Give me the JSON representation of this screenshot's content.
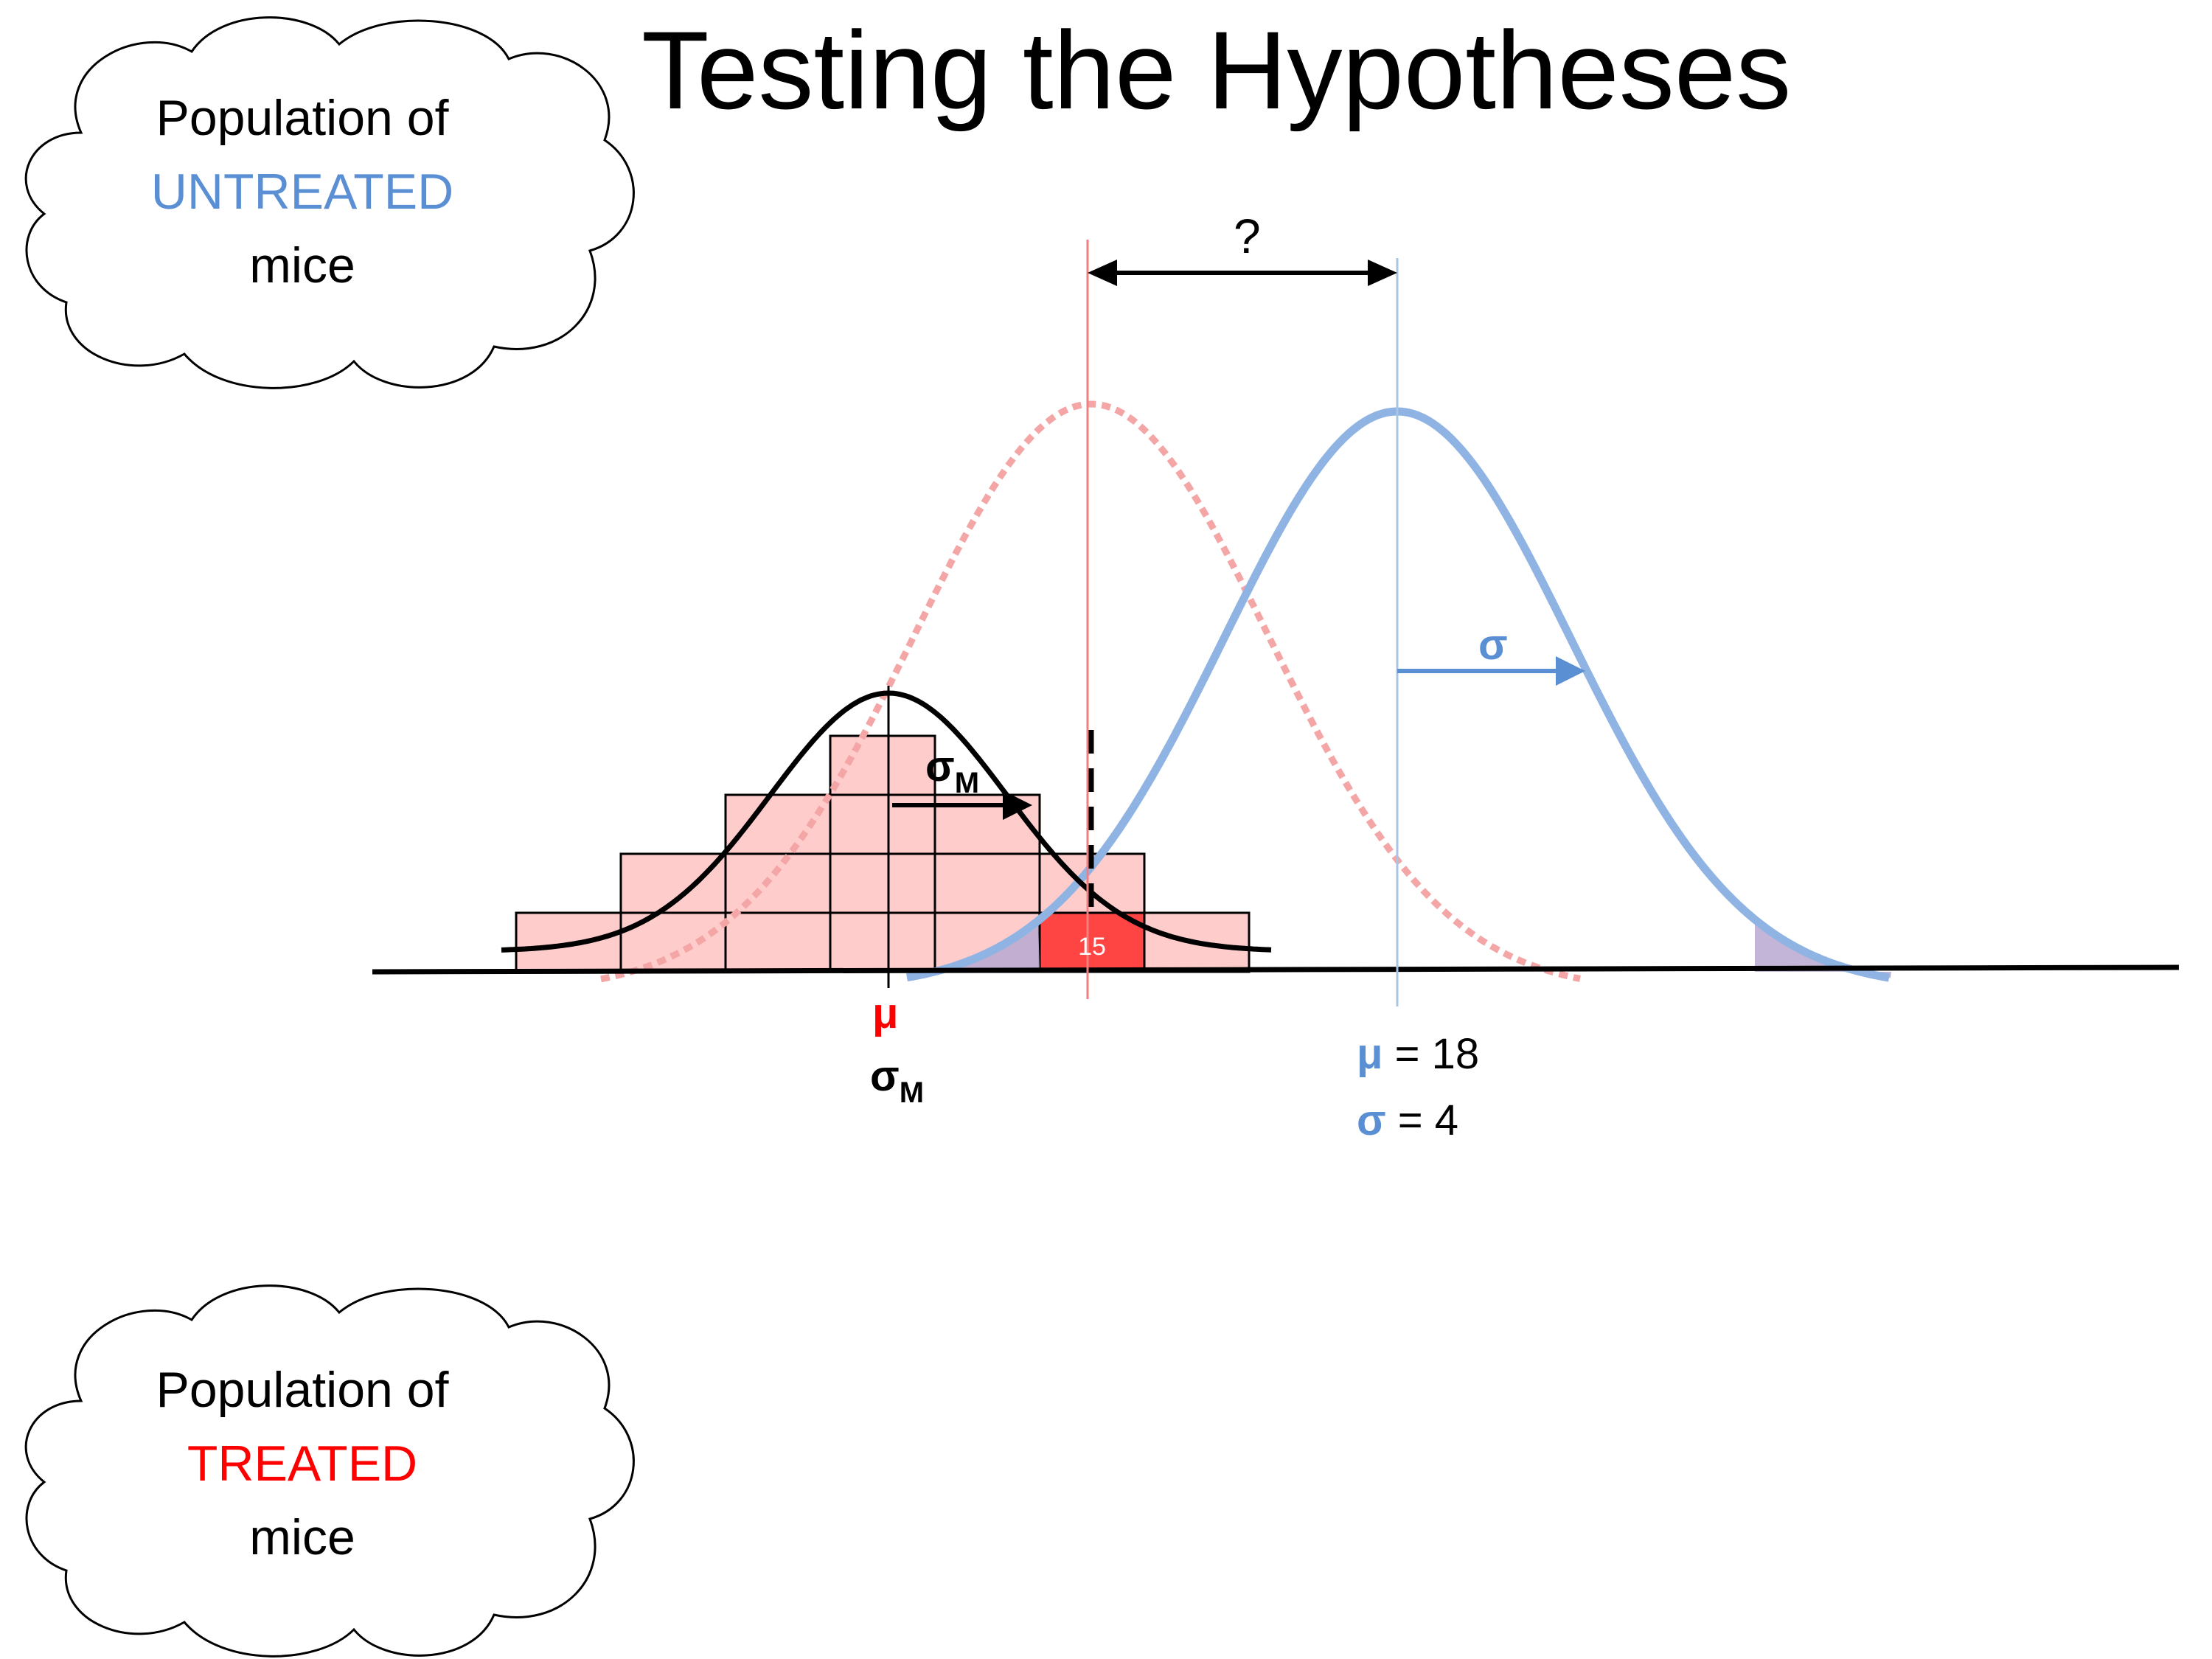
{
  "title": "Testing the Hypotheses",
  "cloud_untreated": {
    "line1": "Population of",
    "line2": "UNTREATED",
    "line3": "mice"
  },
  "cloud_treated": {
    "line1": "Population of",
    "line2": "TREATED",
    "line3": "mice"
  },
  "difference_label": "?",
  "sample_box_value": "15",
  "symbols": {
    "mu": "μ",
    "sigma": "σ",
    "sigma_m_main": "σ",
    "sigma_m_sub": "M"
  },
  "untreated_params": {
    "mu_label": "μ",
    "mu_value": " = 18",
    "sigma_label": "σ",
    "sigma_value": " = 4"
  },
  "colors": {
    "untreated_blue": "#5b8fd4",
    "untreated_curve": "#8fb4e3",
    "treated_red": "#ff0000",
    "treated_dashed": "#f4a6a6",
    "histogram_fill": "#ffcccc",
    "highlight_box": "#ff4444",
    "tail_fill": "#b7a8d0"
  }
}
